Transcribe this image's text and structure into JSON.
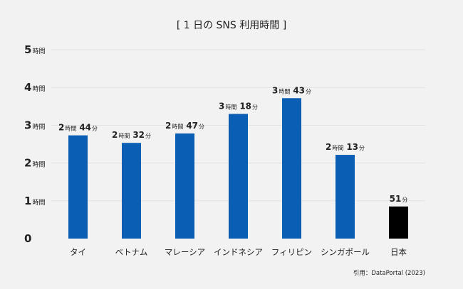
{
  "chart_data": {
    "type": "bar",
    "title": "[ 1 日の SNS 利用時間 ]",
    "source": "引用：DataPortal (2023)",
    "categories": [
      "タイ",
      "ベトナム",
      "マレーシア",
      "インドネシア",
      "フィリピン",
      "シンガポール",
      "日本"
    ],
    "values": [
      2.733,
      2.533,
      2.783,
      3.3,
      3.717,
      2.217,
      0.85
    ],
    "value_labels": [
      [
        [
          "2",
          "時間"
        ],
        [
          "44",
          "分"
        ]
      ],
      [
        [
          "2",
          "時間"
        ],
        [
          "32",
          "分"
        ]
      ],
      [
        [
          "2",
          "時間"
        ],
        [
          "47",
          "分"
        ]
      ],
      [
        [
          "3",
          "時間"
        ],
        [
          "18",
          "分"
        ]
      ],
      [
        [
          "3",
          "時間"
        ],
        [
          "43",
          "分"
        ]
      ],
      [
        [
          "2",
          "時間"
        ],
        [
          "13",
          "分"
        ]
      ],
      [
        [
          "51",
          "分"
        ]
      ]
    ],
    "bar_colors": [
      "#0a5fb4",
      "#0a5fb4",
      "#0a5fb4",
      "#0a5fb4",
      "#0a5fb4",
      "#0a5fb4",
      "#000000"
    ],
    "y_ticks": [
      {
        "value": 0,
        "num": "0",
        "unit": ""
      },
      {
        "value": 1,
        "num": "1",
        "unit": "時間"
      },
      {
        "value": 2,
        "num": "2",
        "unit": "時間"
      },
      {
        "value": 3,
        "num": "3",
        "unit": "時間"
      },
      {
        "value": 4,
        "num": "4",
        "unit": "時間"
      },
      {
        "value": 5,
        "num": "5",
        "unit": "時間"
      }
    ],
    "ylim": [
      0,
      5
    ],
    "grid": true,
    "legend": "none"
  }
}
